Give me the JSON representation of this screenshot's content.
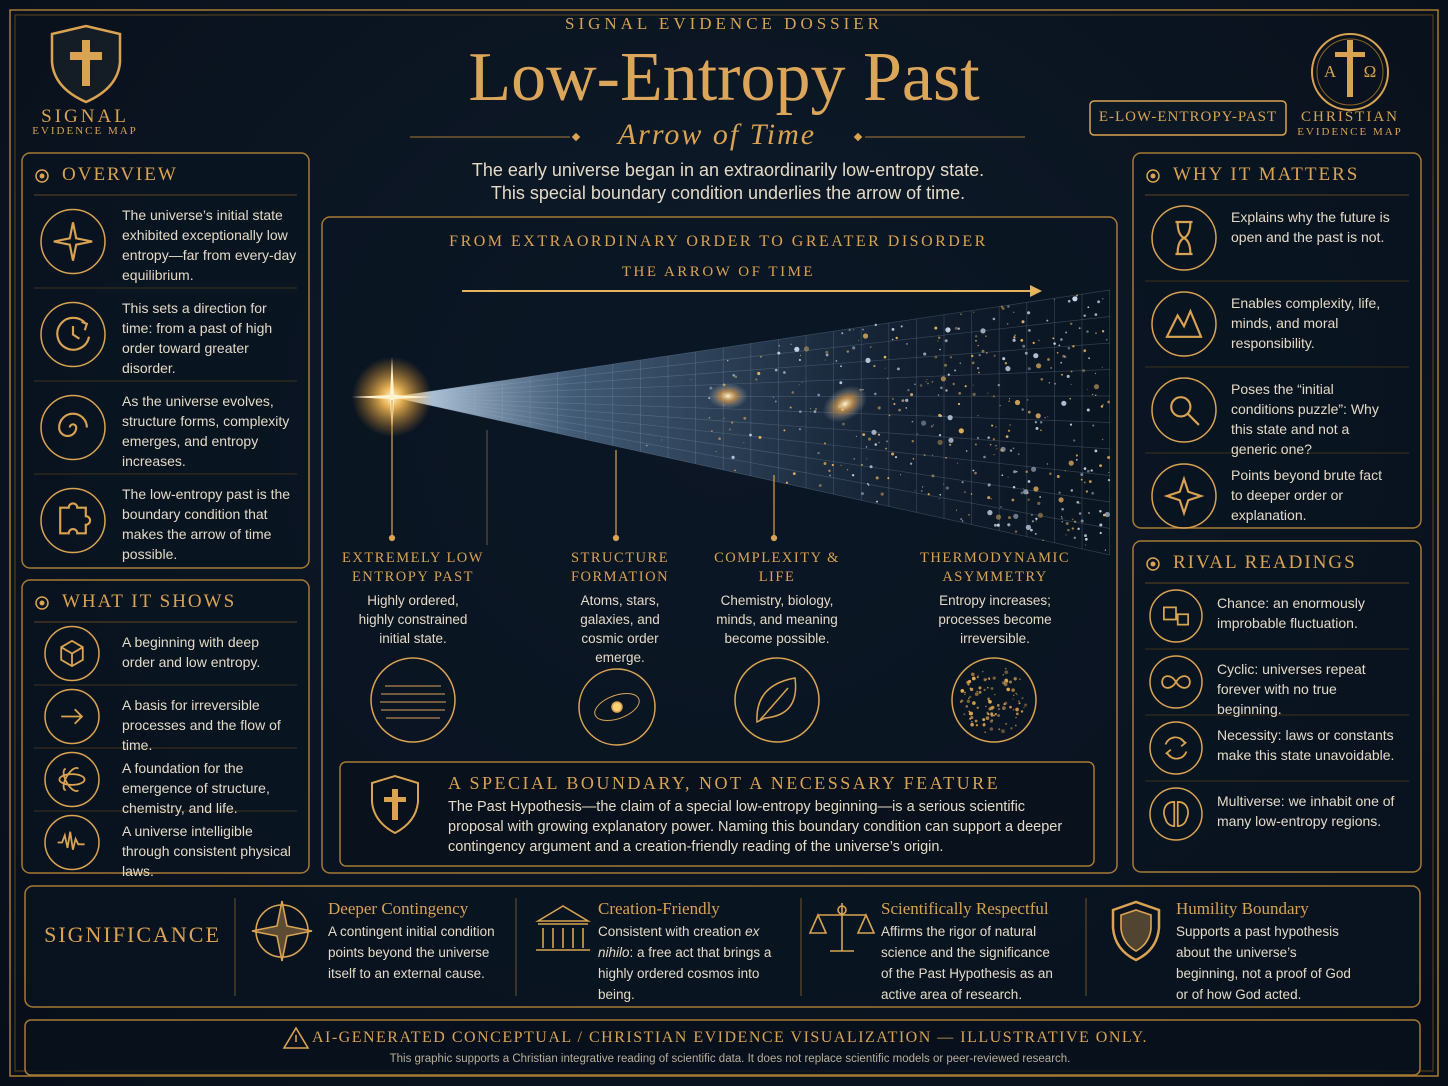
{
  "header": {
    "kicker": "SIGNAL EVIDENCE DOSSIER",
    "title": "Low-Entropy Past",
    "subtitle": "Arrow of Time",
    "intro": [
      "The early universe began in an extraordinarily low-entropy state.",
      "This special boundary condition underlies the arrow of time."
    ],
    "badge": "E-LOW-ENTROPY-PAST",
    "left_logo": [
      "SIGNAL",
      "EVIDENCE MAP"
    ],
    "right_logo": {
      "alpha": "A",
      "omega": "Ω",
      "lines": [
        "CHRISTIAN",
        "EVIDENCE MAP"
      ]
    }
  },
  "overview": {
    "title": "OVERVIEW",
    "items": [
      "The universe’s initial state exhibited exceptionally low entropy—far from every-day equilibrium.",
      "This sets a direction for time: from a past of high order toward greater disorder.",
      "As the universe evolves, structure forms, complexity emerges, and entropy increases.",
      "The low-entropy past is the boundary condition that makes the arrow of time possible."
    ]
  },
  "what_it_shows": {
    "title": "WHAT IT SHOWS",
    "items": [
      "A beginning with deep order and low entropy.",
      "A basis for irreversible processes and the flow of time.",
      "A foundation for the emergence of structure, chemistry, and life.",
      "A universe intelligible through consistent physical laws."
    ]
  },
  "why_it_matters": {
    "title": "WHY IT MATTERS",
    "items": [
      "Explains why the future is open and the past is not.",
      "Enables complexity, life, minds, and moral responsibility.",
      "Poses the “initial conditions puzzle”: Why this state and not a generic one?",
      "Points beyond brute fact to deeper order or explanation."
    ]
  },
  "rival_readings": {
    "title": "RIVAL READINGS",
    "items": [
      "Chance: an enormously improbable fluctuation.",
      "Cyclic: universes repeat forever with no true beginning.",
      "Necessity: laws or constants make this state unavoidable.",
      "Multiverse: we inhabit one of many low-entropy regions."
    ]
  },
  "center": {
    "heading": "FROM EXTRAORDINARY ORDER TO GREATER DISORDER",
    "arrow_label": "THE ARROW OF TIME",
    "stages": [
      {
        "title": "EXTREMELY LOW ENTROPY PAST",
        "text": "Highly ordered, highly constrained initial state."
      },
      {
        "title": "STRUCTURE FORMATION",
        "text": "Atoms, stars, galaxies, and cosmic order emerge."
      },
      {
        "title": "COMPLEXITY & LIFE",
        "text": "Chemistry, biology, minds, and meaning become possible."
      },
      {
        "title": "THERMODYNAMIC ASYMMETRY",
        "text": "Entropy increases; processes become irreversible."
      }
    ],
    "boundary": {
      "title": "A SPECIAL BOUNDARY, NOT A NECESSARY FEATURE",
      "text": "The Past Hypothesis—the claim of a special low-entropy beginning—is a serious scientific proposal with growing explanatory power. Naming this boundary condition can support a deeper contingency argument and a creation-friendly reading of the universe’s origin."
    }
  },
  "significance": {
    "title": "SIGNIFICANCE",
    "items": [
      {
        "title": "Deeper Contingency",
        "text": [
          "A contingent initial condition points beyond the universe itself to an external cause."
        ]
      },
      {
        "title": "Creation-Friendly",
        "text": [
          "Consistent with creation ",
          "ex nihilo",
          ": a free act that brings a highly ordered cosmos into being."
        ]
      },
      {
        "title": "Scientifically Respectful",
        "text": [
          "Affirms the rigor of natural science and the significance of the Past Hypothesis as an active area of research."
        ]
      },
      {
        "title": "Humility Boundary",
        "text": [
          "Supports a past hypothesis about the universe’s beginning, not a proof of God or of how God acted."
        ]
      }
    ]
  },
  "footer": {
    "warning": "AI-GENERATED CONCEPTUAL / CHRISTIAN EVIDENCE VISUALIZATION — ILLUSTRATIVE ONLY.",
    "note": "This graphic supports a Christian integrative reading of scientific data. It does not replace scientific models or peer-reviewed research."
  }
}
